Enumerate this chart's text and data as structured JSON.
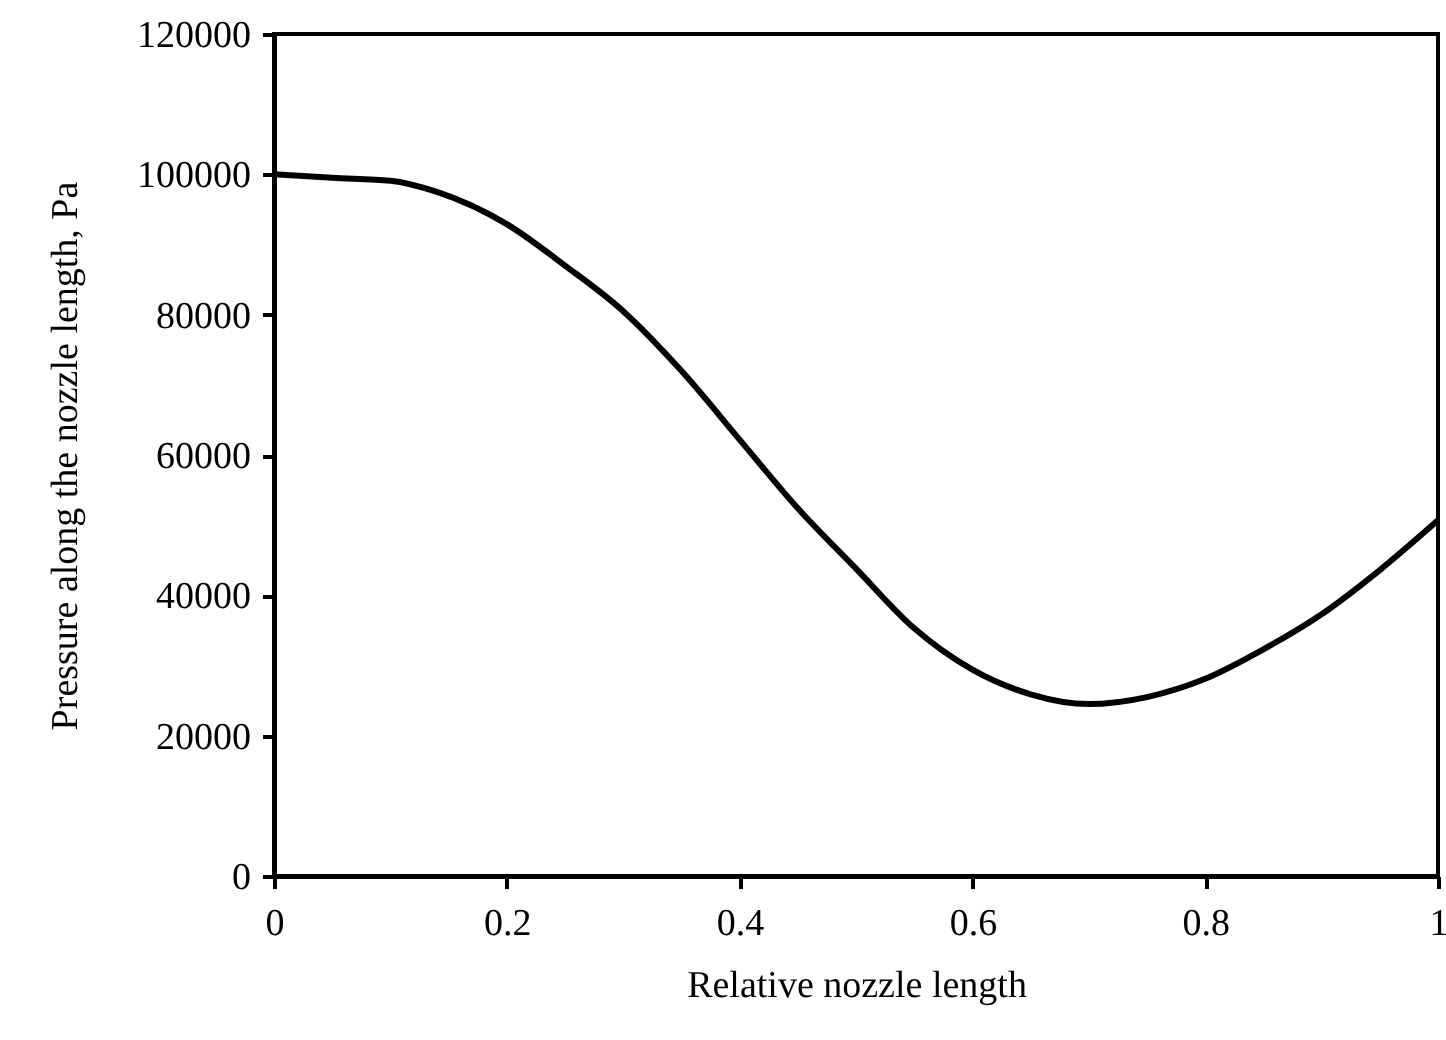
{
  "chart_data": {
    "type": "line",
    "xlabel": "Relative nozzle length",
    "ylabel": "Pressure along the nozzle length, Pa",
    "x": [
      0,
      0.05,
      0.1,
      0.14,
      0.2,
      0.25,
      0.3,
      0.35,
      0.4,
      0.45,
      0.5,
      0.55,
      0.6,
      0.65,
      0.7,
      0.75,
      0.8,
      0.85,
      0.9,
      0.95,
      1.0
    ],
    "series": [
      {
        "color": "#000000",
        "values": [
          100000,
          99500,
          99100,
          97500,
          92900,
          87000,
          80500,
          72000,
          62200,
          52400,
          43800,
          35300,
          29400,
          25900,
          24500,
          25500,
          28100,
          32300,
          37300,
          43600,
          50700
        ]
      }
    ],
    "xlim": [
      0,
      1
    ],
    "xticks": [
      0,
      0.2,
      0.4,
      0.6,
      0.8,
      1
    ],
    "ylim": [
      0,
      120000
    ],
    "yticks": [
      0,
      20000,
      40000,
      60000,
      80000,
      100000,
      120000
    ],
    "grid": false,
    "marker": "none",
    "line_style": "solid"
  }
}
